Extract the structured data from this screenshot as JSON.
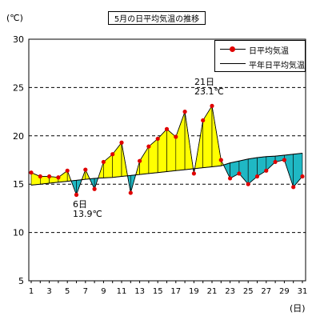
{
  "chart_data": {
    "type": "line",
    "title": "5月の日平均気温の推移",
    "ylabel": "(℃)",
    "xlabel": "(日)",
    "ylim": [
      5,
      30
    ],
    "yticks": [
      5,
      10,
      15,
      20,
      25,
      30
    ],
    "x": [
      1,
      2,
      3,
      4,
      5,
      6,
      7,
      8,
      9,
      10,
      11,
      12,
      13,
      14,
      15,
      16,
      17,
      18,
      19,
      20,
      21,
      22,
      23,
      24,
      25,
      26,
      27,
      28,
      29,
      30,
      31
    ],
    "grid": "horizontal dashed",
    "legend_position": "top-right",
    "series": [
      {
        "name": "日平均気温",
        "color": "#e00000",
        "marker": "circle",
        "values": [
          16.2,
          15.8,
          15.8,
          15.7,
          16.4,
          13.9,
          16.5,
          14.5,
          17.3,
          18.1,
          19.3,
          14.1,
          17.4,
          18.9,
          19.7,
          20.7,
          19.9,
          22.5,
          16.1,
          21.6,
          23.1,
          17.5,
          15.6,
          16.1,
          15.0,
          15.8,
          16.4,
          17.3,
          17.5,
          14.7,
          15.8
        ]
      },
      {
        "name": "平年日平均気温",
        "color": "#000000",
        "marker": "none",
        "values": [
          14.9,
          15.0,
          15.1,
          15.2,
          15.3,
          15.4,
          15.5,
          15.6,
          15.65,
          15.7,
          15.8,
          15.9,
          16.0,
          16.1,
          16.2,
          16.3,
          16.4,
          16.5,
          16.6,
          16.7,
          16.8,
          16.9,
          17.2,
          17.4,
          17.6,
          17.75,
          17.85,
          17.9,
          18.0,
          18.1,
          18.2
        ]
      }
    ],
    "fill_colors": {
      "above_normal": "#ffff00",
      "below_normal": "#1fb8c4"
    },
    "annotations": [
      {
        "day": 21,
        "day_label": "21日",
        "value_label": "23.1℃",
        "kind": "max"
      },
      {
        "day": 6,
        "day_label": "6日",
        "value_label": "13.9℃",
        "kind": "min"
      }
    ]
  }
}
